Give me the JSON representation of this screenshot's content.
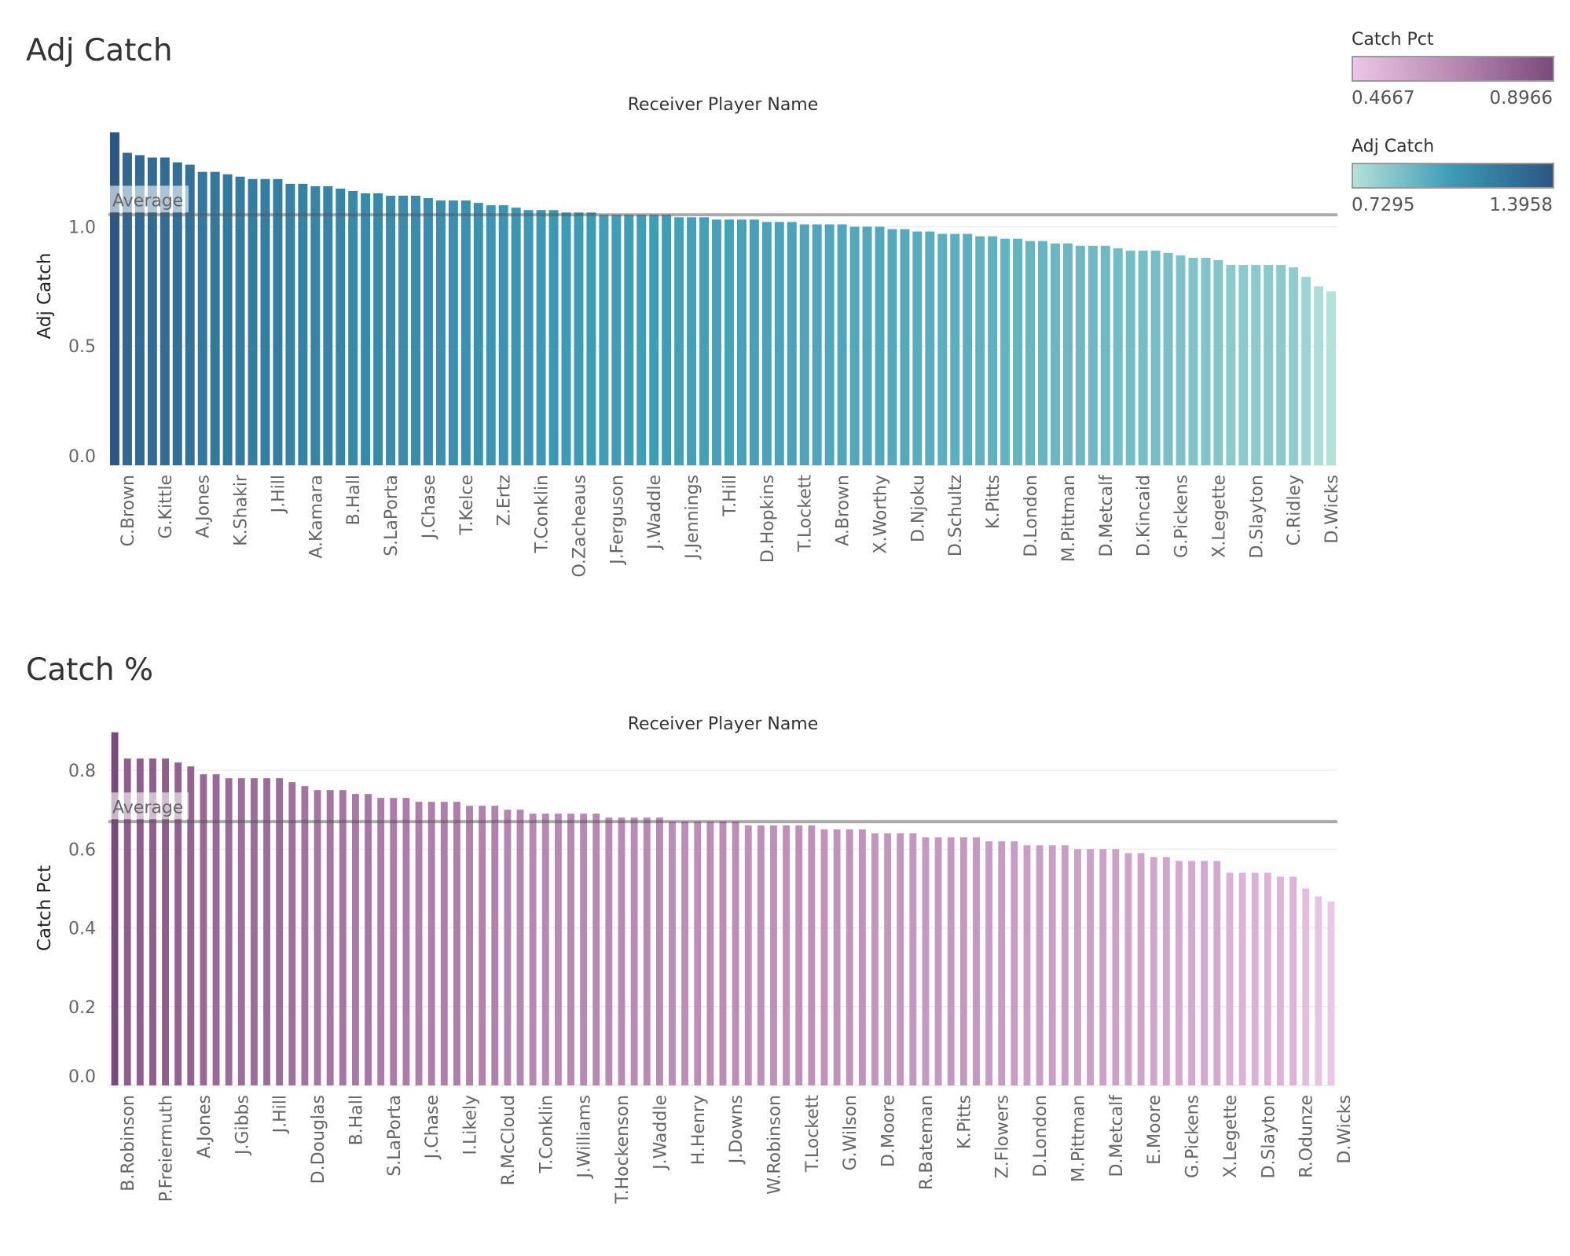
{
  "sheets": [
    {
      "title": "Adj Catch"
    },
    {
      "title": "Catch %"
    }
  ],
  "legends": [
    {
      "title": "Catch Pct",
      "min": "0.4667",
      "max": "0.8966",
      "colors": [
        "#ecc6e6",
        "#b98ab3",
        "#7a4a7c"
      ]
    },
    {
      "title": "Adj Catch",
      "min": "0.7295",
      "max": "1.3958",
      "colors": [
        "#b4e1d8",
        "#3c9ab5",
        "#2c5684"
      ]
    }
  ],
  "chart_data": [
    {
      "type": "bar",
      "title": "Adj Catch",
      "xlabel": "Receiver Player Name",
      "ylabel": "Adj Catch",
      "ylim": [
        0,
        1.42
      ],
      "yticks": [
        0.0,
        0.5,
        1.0
      ],
      "ytick_labels": [
        "0.0",
        "0.5",
        "1.0"
      ],
      "grid": true,
      "reference_line": {
        "label": "Average",
        "value": 1.05
      },
      "color_scale": {
        "field": "Adj Catch",
        "min": 0.7295,
        "max": 1.3958
      },
      "visible_category_labels": [
        "C.Brown",
        "G.Kittle",
        "A.Jones",
        "K.Shakir",
        "J.Hill",
        "A.Kamara",
        "B.Hall",
        "S.LaPorta",
        "J.Chase",
        "T.Kelce",
        "Z.Ertz",
        "T.Conklin",
        "O.Zacheaus",
        "J.Ferguson",
        "J.Waddle",
        "J.Jennings",
        "T.Hill",
        "D.Hopkins",
        "T.Lockett",
        "A.Brown",
        "X.Worthy",
        "D.Njoku",
        "D.Schultz",
        "K.Pitts",
        "D.London",
        "M.Pittman",
        "D.Metcalf",
        "D.Kincaid",
        "G.Pickens",
        "X.Legette",
        "D.Slayton",
        "C.Ridley",
        "D.Wicks"
      ],
      "values": [
        1.3958,
        1.31,
        1.3,
        1.29,
        1.29,
        1.27,
        1.26,
        1.23,
        1.23,
        1.22,
        1.21,
        1.2,
        1.2,
        1.2,
        1.18,
        1.18,
        1.17,
        1.17,
        1.16,
        1.15,
        1.14,
        1.14,
        1.13,
        1.13,
        1.13,
        1.12,
        1.11,
        1.11,
        1.11,
        1.1,
        1.09,
        1.09,
        1.08,
        1.07,
        1.07,
        1.07,
        1.06,
        1.06,
        1.06,
        1.05,
        1.05,
        1.05,
        1.05,
        1.05,
        1.05,
        1.04,
        1.04,
        1.04,
        1.03,
        1.03,
        1.03,
        1.03,
        1.02,
        1.02,
        1.02,
        1.01,
        1.01,
        1.01,
        1.01,
        1.0,
        1.0,
        1.0,
        0.99,
        0.99,
        0.98,
        0.98,
        0.97,
        0.97,
        0.97,
        0.96,
        0.96,
        0.95,
        0.95,
        0.94,
        0.94,
        0.93,
        0.93,
        0.92,
        0.92,
        0.92,
        0.91,
        0.9,
        0.9,
        0.9,
        0.89,
        0.88,
        0.87,
        0.87,
        0.86,
        0.84,
        0.84,
        0.84,
        0.84,
        0.84,
        0.83,
        0.79,
        0.75,
        0.7295
      ]
    },
    {
      "type": "bar",
      "title": "Catch %",
      "xlabel": "Receiver Player Name",
      "ylabel": "Catch Pct",
      "ylim": [
        0,
        0.9
      ],
      "yticks": [
        0.0,
        0.2,
        0.4,
        0.6,
        0.8
      ],
      "ytick_labels": [
        "0.0",
        "0.2",
        "0.4",
        "0.6",
        "0.8"
      ],
      "grid": true,
      "reference_line": {
        "label": "Average",
        "value": 0.67
      },
      "color_scale": {
        "field": "Catch Pct",
        "min": 0.4667,
        "max": 0.8966
      },
      "visible_category_labels": [
        "B.Robinson",
        "P.Freiermuth",
        "A.Jones",
        "J.Gibbs",
        "J.Hill",
        "D.Douglas",
        "B.Hall",
        "S.LaPorta",
        "J.Chase",
        "I.Likely",
        "R.McCloud",
        "T.Conklin",
        "J.Williams",
        "T.Hockenson",
        "J.Waddle",
        "H.Henry",
        "J.Downs",
        "W.Robinson",
        "T.Lockett",
        "G.Wilson",
        "D.Moore",
        "R.Bateman",
        "K.Pitts",
        "Z.Flowers",
        "D.London",
        "M.Pittman",
        "D.Metcalf",
        "E.Moore",
        "G.Pickens",
        "X.Legette",
        "D.Slayton",
        "R.Odunze",
        "D.Wicks"
      ],
      "values": [
        0.8966,
        0.83,
        0.83,
        0.83,
        0.83,
        0.82,
        0.81,
        0.79,
        0.79,
        0.78,
        0.78,
        0.78,
        0.78,
        0.78,
        0.77,
        0.76,
        0.75,
        0.75,
        0.75,
        0.74,
        0.74,
        0.73,
        0.73,
        0.73,
        0.72,
        0.72,
        0.72,
        0.72,
        0.71,
        0.71,
        0.71,
        0.7,
        0.7,
        0.69,
        0.69,
        0.69,
        0.69,
        0.69,
        0.69,
        0.68,
        0.68,
        0.68,
        0.68,
        0.68,
        0.67,
        0.67,
        0.67,
        0.67,
        0.67,
        0.67,
        0.66,
        0.66,
        0.66,
        0.66,
        0.66,
        0.66,
        0.65,
        0.65,
        0.65,
        0.65,
        0.64,
        0.64,
        0.64,
        0.64,
        0.63,
        0.63,
        0.63,
        0.63,
        0.63,
        0.62,
        0.62,
        0.62,
        0.61,
        0.61,
        0.61,
        0.61,
        0.6,
        0.6,
        0.6,
        0.6,
        0.59,
        0.59,
        0.58,
        0.58,
        0.57,
        0.57,
        0.57,
        0.57,
        0.54,
        0.54,
        0.54,
        0.54,
        0.53,
        0.53,
        0.5,
        0.48,
        0.4667
      ]
    }
  ]
}
